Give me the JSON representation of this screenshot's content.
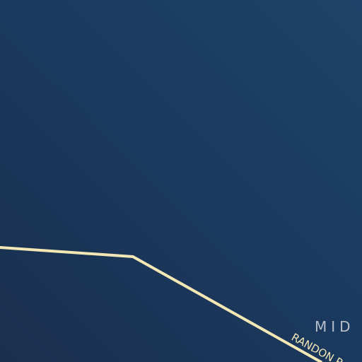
{
  "colors": {
    "water": "#1b3a60",
    "road": "#f3e7b5",
    "area_label": "#b7bfca",
    "road_label": "#f3e7b5"
  },
  "labels": {
    "area": "MID",
    "road": "RANDON R"
  }
}
